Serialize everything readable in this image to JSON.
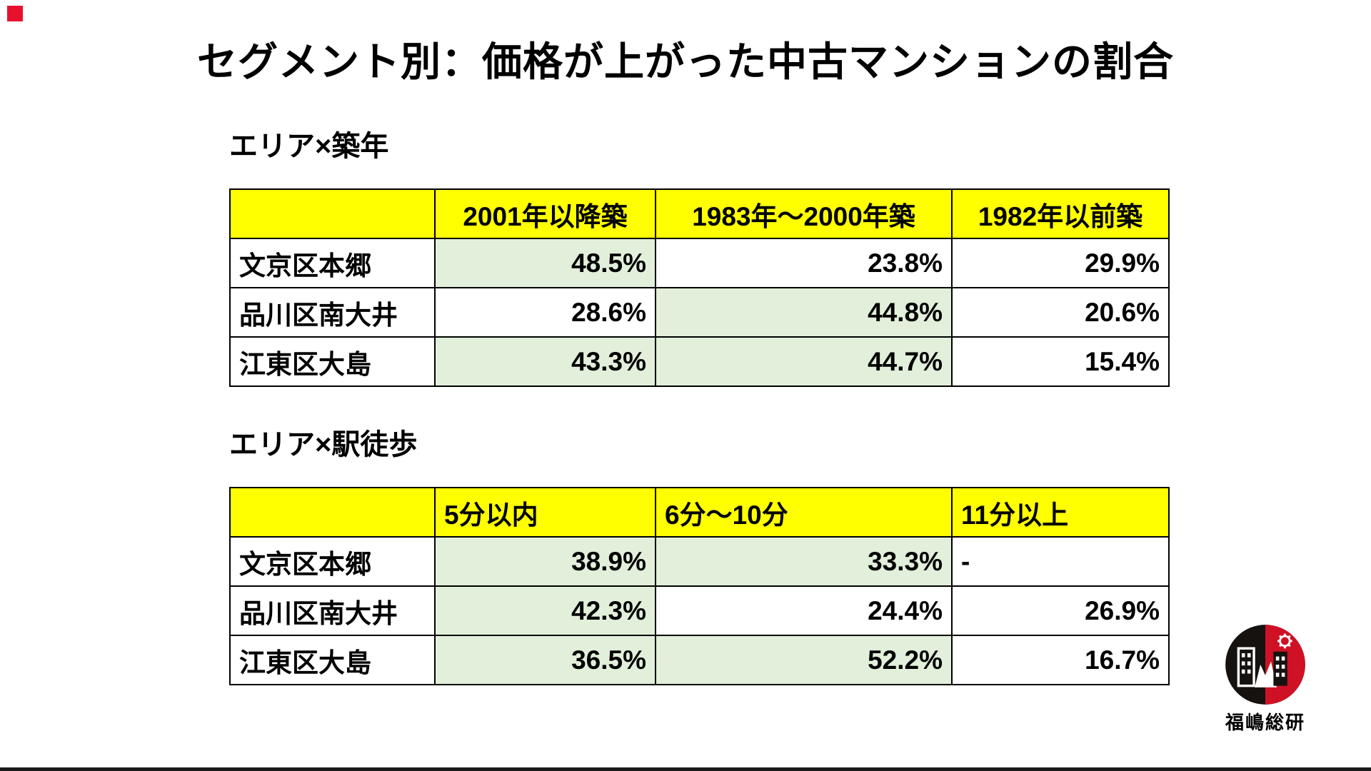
{
  "page": {
    "title": "セグメント別：価格が上がった中古マンションの割合"
  },
  "chart_data": [
    {
      "type": "table",
      "title": "エリア×築年",
      "header_align": "center",
      "columns": [
        "",
        "2001年以降築",
        "1983年〜2000年築",
        "1982年以前築"
      ],
      "rows": [
        [
          "文京区本郷",
          "48.5%",
          "23.8%",
          "29.9%"
        ],
        [
          "品川区南大井",
          "28.6%",
          "44.8%",
          "20.6%"
        ],
        [
          "江東区大島",
          "43.3%",
          "44.7%",
          "15.4%"
        ]
      ],
      "highlighted_cells": [
        [
          0,
          1
        ],
        [
          1,
          2
        ],
        [
          2,
          1
        ],
        [
          2,
          2
        ]
      ]
    },
    {
      "type": "table",
      "title": "エリア×駅徒歩",
      "header_align": "left",
      "columns": [
        "",
        "5分以内",
        "6分～10分",
        "11分以上"
      ],
      "rows": [
        [
          "文京区本郷",
          "38.9%",
          "33.3%",
          "-"
        ],
        [
          "品川区南大井",
          "42.3%",
          "24.4%",
          "26.9%"
        ],
        [
          "江東区大島",
          "36.5%",
          "52.2%",
          "16.7%"
        ]
      ],
      "highlighted_cells": [
        [
          0,
          1
        ],
        [
          0,
          2
        ],
        [
          1,
          1
        ],
        [
          2,
          1
        ],
        [
          2,
          2
        ]
      ]
    }
  ],
  "logo": {
    "text": "福嶋総研"
  },
  "colors": {
    "header_bg": "#FFFF00",
    "highlight_bg": "#E2EFDA",
    "table_border": "#000000",
    "title_text": "#000000",
    "logo_black": "#15120F",
    "logo_red": "#CF1126",
    "corner_mark": "#E8112D"
  }
}
